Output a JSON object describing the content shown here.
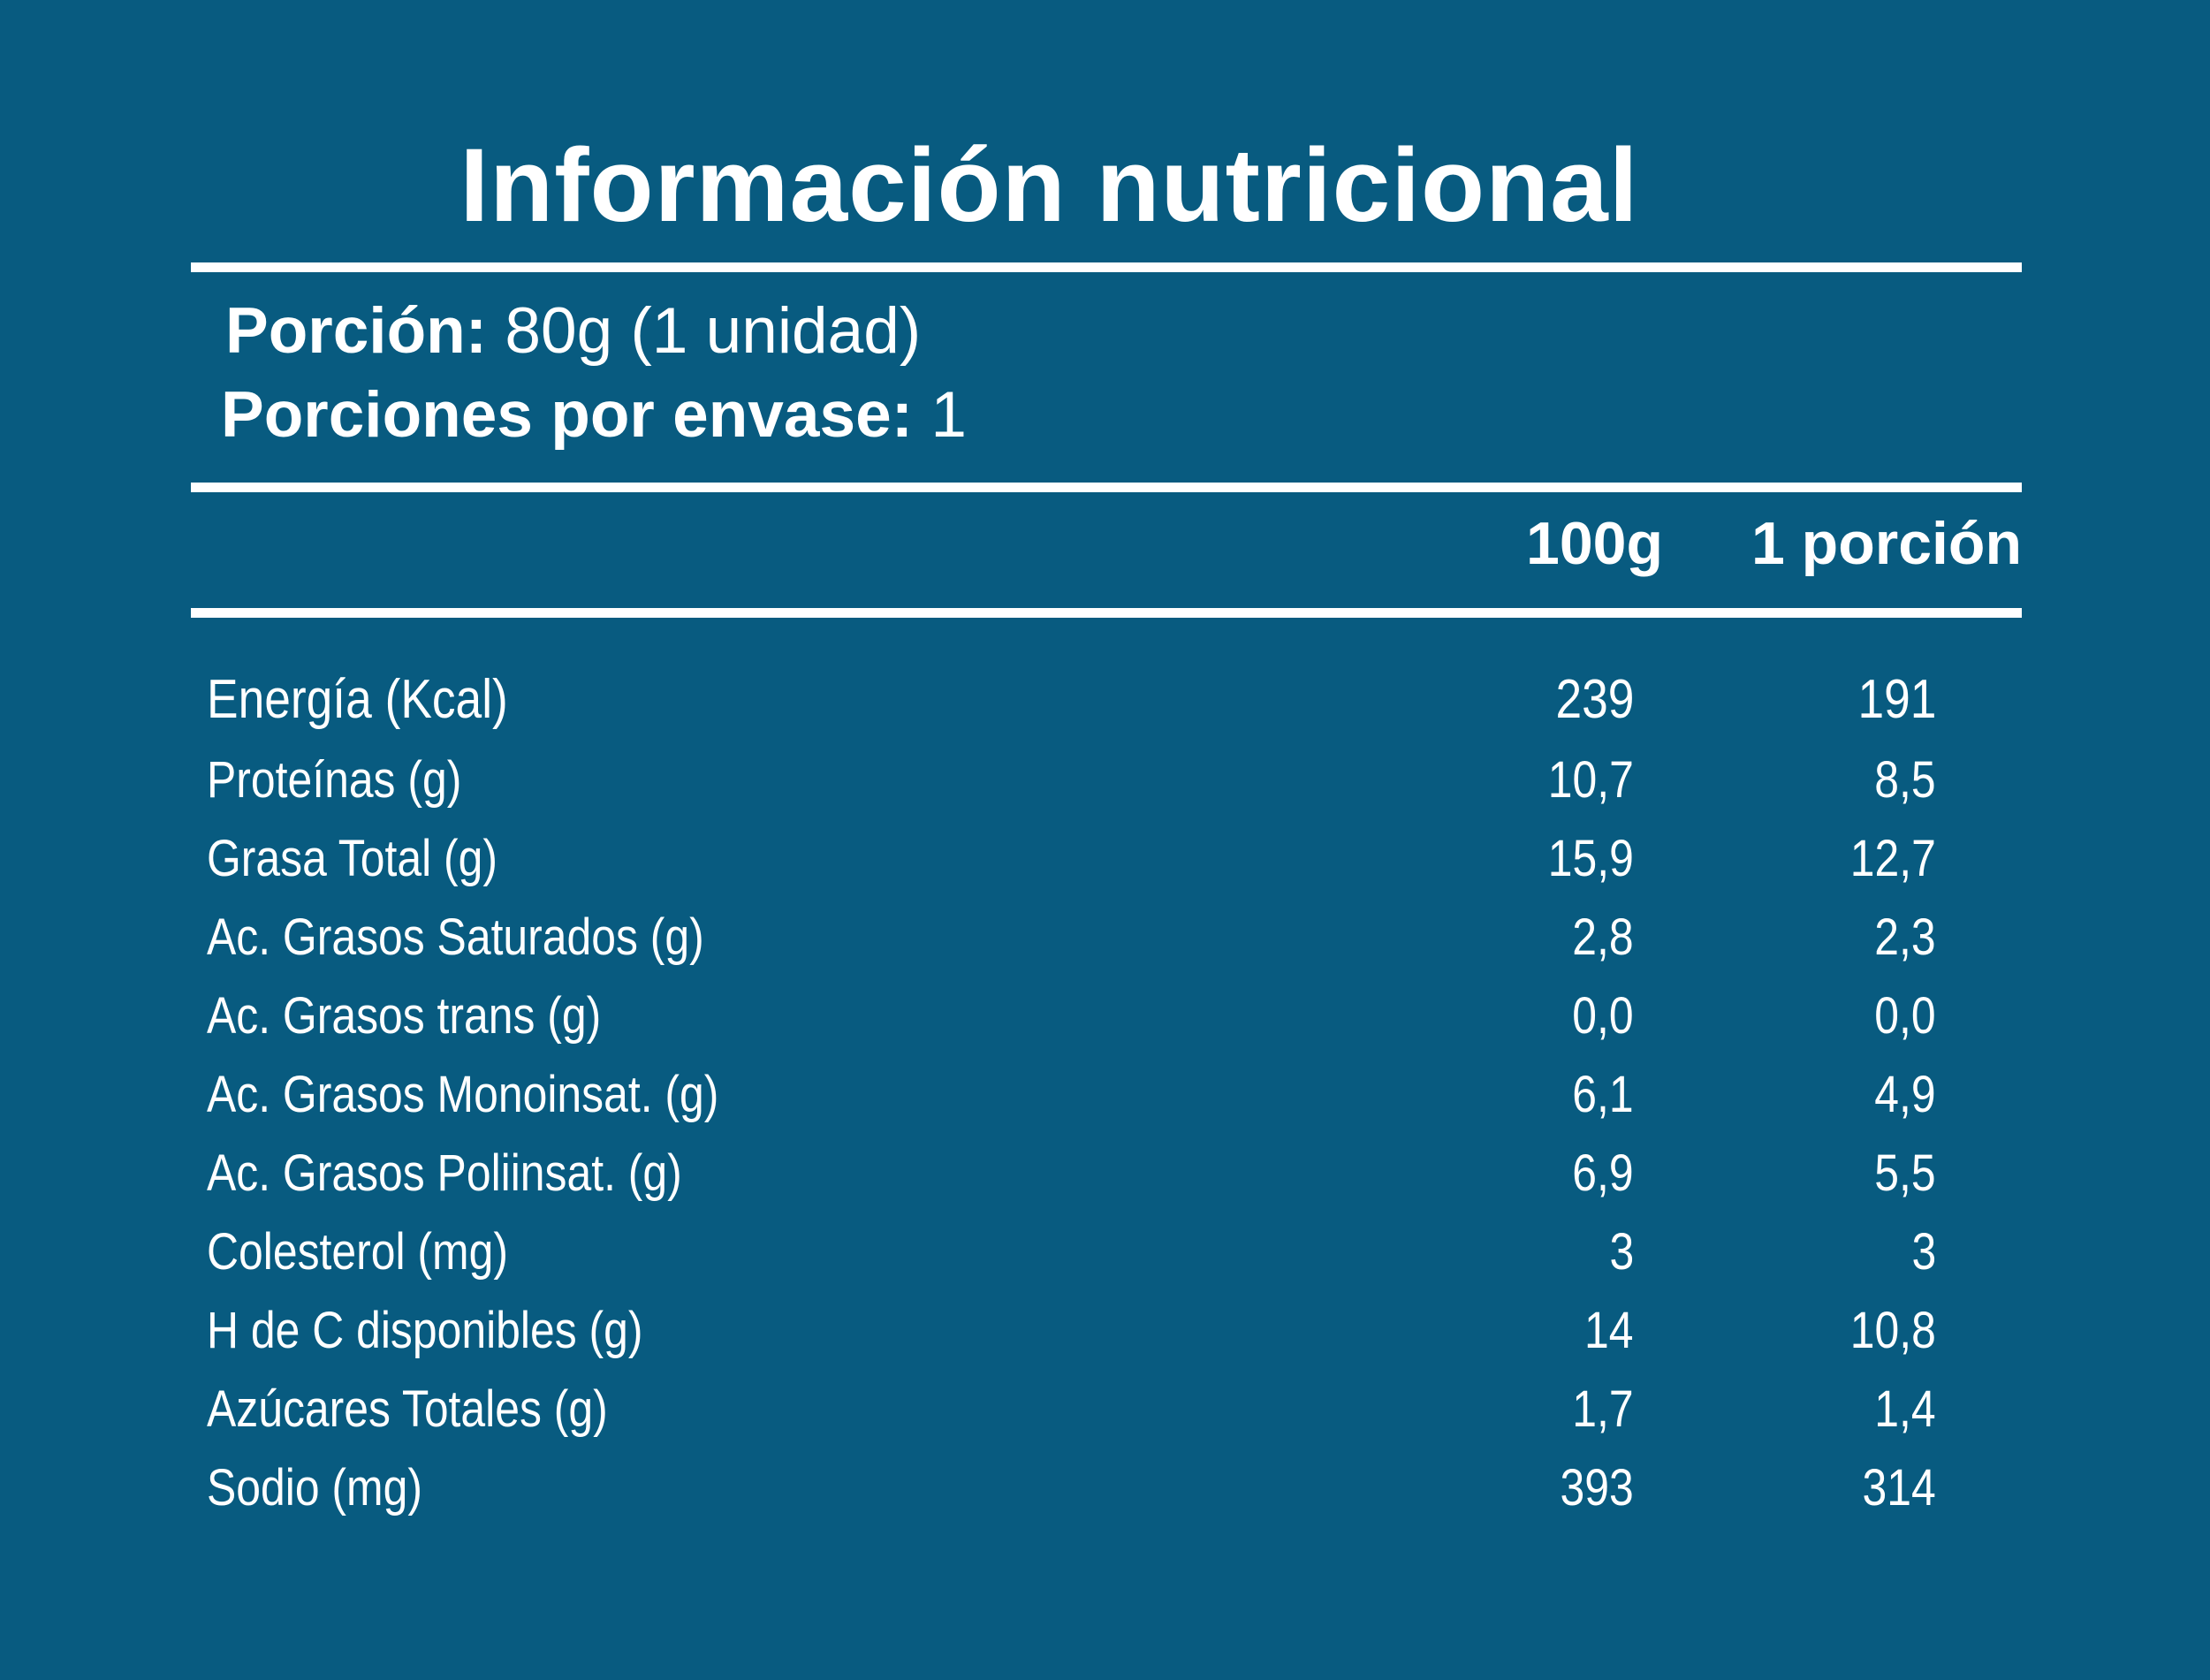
{
  "title": "Información nutricional",
  "serving": {
    "label": "Porción:",
    "value": "80g (1 unidad)"
  },
  "servings_per_container": {
    "label": "Porciones por envase:",
    "value": "1"
  },
  "columns": {
    "per_100g": "100g",
    "per_portion": "1 porción"
  },
  "nutrients": [
    {
      "name": "Energía (Kcal)",
      "per_100g": "239",
      "per_portion": "191"
    },
    {
      "name": "Proteínas (g)",
      "per_100g": "10,7",
      "per_portion": "8,5"
    },
    {
      "name": "Grasa Total (g)",
      "per_100g": "15,9",
      "per_portion": "12,7"
    },
    {
      "name": "Ac. Grasos Saturados (g)",
      "per_100g": "2,8",
      "per_portion": "2,3"
    },
    {
      "name": "Ac. Grasos trans (g)",
      "per_100g": "0,0",
      "per_portion": "0,0"
    },
    {
      "name": "Ac. Grasos Monoinsat. (g)",
      "per_100g": "6,1",
      "per_portion": "4,9"
    },
    {
      "name": "Ac. Grasos Poliinsat. (g)",
      "per_100g": "6,9",
      "per_portion": "5,5"
    },
    {
      "name": "Colesterol (mg)",
      "per_100g": "3",
      "per_portion": "3"
    },
    {
      "name": "H de C disponibles (g)",
      "per_100g": "14",
      "per_portion": "10,8"
    },
    {
      "name": "Azúcares Totales (g)",
      "per_100g": "1,7",
      "per_portion": "1,4"
    },
    {
      "name": "Sodio (mg)",
      "per_100g": "393",
      "per_portion": "314"
    }
  ],
  "colors": {
    "background": "#085b80",
    "text": "#ffffff"
  }
}
